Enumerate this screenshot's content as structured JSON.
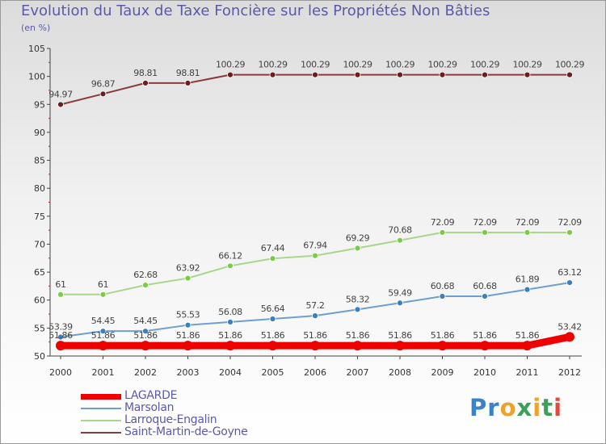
{
  "title": "Evolution du Taux de Taxe Foncière sur les Propriétés Non Bâties",
  "unit": "(en %)",
  "logo": "Proxiti",
  "chart_data": {
    "type": "line",
    "title": "Evolution du Taux de Taxe Foncière sur les Propriétés Non Bâties",
    "ylabel": "(en %)",
    "xlabel": "",
    "x": [
      "2000",
      "2001",
      "2002",
      "2003",
      "2004",
      "2005",
      "2006",
      "2007",
      "2008",
      "2009",
      "2010",
      "2011",
      "2012"
    ],
    "ylim": [
      50,
      105
    ],
    "yticks": [
      50,
      55,
      60,
      65,
      70,
      75,
      80,
      85,
      90,
      95,
      100,
      105
    ],
    "grid": false,
    "legend": "bottom-left",
    "series": [
      {
        "name": "LAGARDE",
        "color": "#ee0000",
        "marker_color": "#ee0000",
        "values": [
          51.86,
          51.86,
          51.86,
          51.86,
          51.86,
          51.86,
          51.86,
          51.86,
          51.86,
          51.86,
          51.86,
          51.86,
          53.42
        ],
        "labels": [
          "51.86",
          "51.86",
          "51.86",
          "51.86",
          "51.86",
          "51.86",
          "51.86",
          "51.86",
          "51.86",
          "51.86",
          "51.86",
          "51.86",
          "53.42"
        ]
      },
      {
        "name": "Marsolan",
        "color": "#6f9fcf",
        "marker_color": "#3a7fbe",
        "values": [
          53.39,
          54.45,
          54.45,
          55.53,
          56.08,
          56.64,
          57.2,
          58.32,
          59.49,
          60.68,
          60.68,
          61.89,
          63.12
        ],
        "labels": [
          "53.39",
          "54.45",
          "54.45",
          "55.53",
          "56.08",
          "56.64",
          "57.2",
          "58.32",
          "59.49",
          "60.68",
          "60.68",
          "61.89",
          "63.12"
        ]
      },
      {
        "name": "Larroque-Engalin",
        "color": "#a5d88b",
        "marker_color": "#7acb45",
        "values": [
          61,
          61,
          62.68,
          63.92,
          66.12,
          67.44,
          67.94,
          69.29,
          70.68,
          72.09,
          72.09,
          72.09,
          72.09
        ],
        "labels": [
          "61",
          "61",
          "62.68",
          "63.92",
          "66.12",
          "67.44",
          "67.94",
          "69.29",
          "70.68",
          "72.09",
          "72.09",
          "72.09",
          "72.09"
        ]
      },
      {
        "name": "Saint-Martin-de-Goyne",
        "color": "#8a3a3a",
        "marker_color": "#6a1f1f",
        "values": [
          94.97,
          96.87,
          98.81,
          98.81,
          100.29,
          100.29,
          100.29,
          100.29,
          100.29,
          100.29,
          100.29,
          100.29,
          100.29
        ],
        "labels": [
          "94.97",
          "96.87",
          "98.81",
          "98.81",
          "100.29",
          "100.29",
          "100.29",
          "100.29",
          "100.29",
          "100.29",
          "100.29",
          "100.29",
          "100.29"
        ]
      }
    ]
  }
}
